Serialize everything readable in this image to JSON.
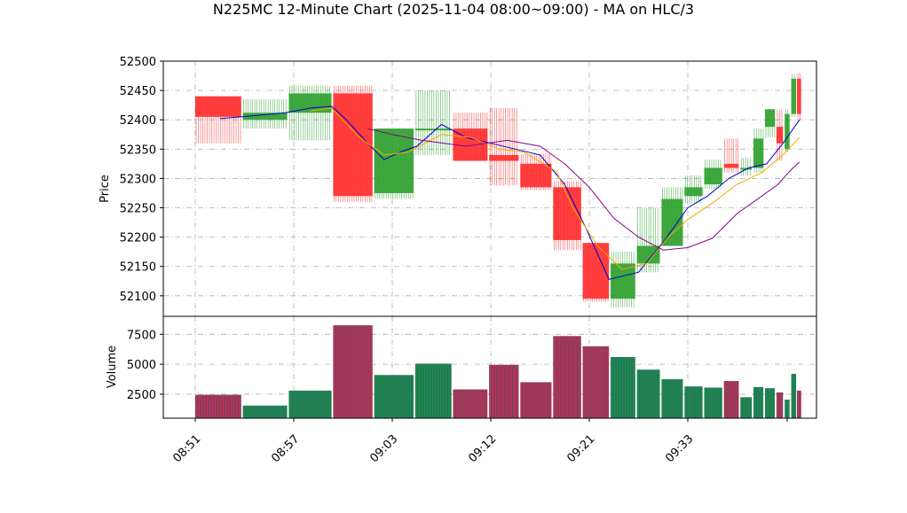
{
  "chart_data": {
    "type": "candlestick",
    "title": "N225MC 12-Minute Chart (2025-11-04 08:00~09:00) - MA on HLC/3",
    "price_panel": {
      "ylabel": "Price",
      "ylim": [
        52065,
        52500
      ],
      "yticks": [
        52100,
        52150,
        52200,
        52250,
        52300,
        52350,
        52400,
        52450,
        52500
      ],
      "grid": true
    },
    "volume_panel": {
      "ylabel": "Volume",
      "ylim": [
        500,
        9000
      ],
      "yticks": [
        2500,
        5000,
        7500
      ],
      "grid": true
    },
    "x": {
      "tick_labels": [
        "08:51",
        "08:57",
        "09:03",
        "09:12",
        "09:21",
        "09:33"
      ],
      "tick_index": [
        0,
        6,
        12,
        18,
        24,
        30
      ]
    },
    "colors": {
      "up": "#2ca02c",
      "down": "#ff2b2b",
      "ma1": "#0000cc",
      "ma2": "#ffa500",
      "ma3": "#8b008b",
      "grid": "#b0b0b0"
    },
    "candles": [
      {
        "start": 0,
        "end": 2.8,
        "open": 52440,
        "close": 52405,
        "high": 52440,
        "low": 52360,
        "volume": 2450
      },
      {
        "start": 2.9,
        "end": 5.6,
        "open": 52400,
        "close": 52412,
        "high": 52435,
        "low": 52385,
        "volume": 1550
      },
      {
        "start": 5.7,
        "end": 8.3,
        "open": 52412,
        "close": 52445,
        "high": 52458,
        "low": 52365,
        "volume": 2800
      },
      {
        "start": 8.4,
        "end": 10.8,
        "open": 52445,
        "close": 52270,
        "high": 52458,
        "low": 52260,
        "volume": 8250
      },
      {
        "start": 10.9,
        "end": 13.3,
        "open": 52275,
        "close": 52385,
        "high": 52385,
        "low": 52265,
        "volume": 4100
      },
      {
        "start": 13.4,
        "end": 15.6,
        "open": 52385,
        "close": 52385,
        "high": 52450,
        "low": 52340,
        "volume": 5050
      },
      {
        "start": 15.7,
        "end": 17.8,
        "open": 52385,
        "close": 52330,
        "high": 52412,
        "low": 52330,
        "volume": 2900
      },
      {
        "start": 17.9,
        "end": 19.7,
        "open": 52340,
        "close": 52330,
        "high": 52420,
        "low": 52288,
        "volume": 4950
      },
      {
        "start": 19.8,
        "end": 21.7,
        "open": 52325,
        "close": 52285,
        "high": 52342,
        "low": 52280,
        "volume": 3500
      },
      {
        "start": 21.8,
        "end": 23.5,
        "open": 52285,
        "close": 52195,
        "high": 52295,
        "low": 52178,
        "volume": 7350
      },
      {
        "start": 23.6,
        "end": 25.2,
        "open": 52190,
        "close": 52095,
        "high": 52190,
        "low": 52090,
        "volume": 6500
      },
      {
        "start": 25.3,
        "end": 26.8,
        "open": 52095,
        "close": 52155,
        "high": 52175,
        "low": 52080,
        "volume": 5600
      },
      {
        "start": 26.9,
        "end": 28.3,
        "open": 52155,
        "close": 52185,
        "high": 52250,
        "low": 52140,
        "volume": 4550
      },
      {
        "start": 28.4,
        "end": 29.7,
        "open": 52185,
        "close": 52265,
        "high": 52285,
        "low": 52185,
        "volume": 3750
      },
      {
        "start": 29.8,
        "end": 30.9,
        "open": 52270,
        "close": 52285,
        "high": 52305,
        "low": 52258,
        "volume": 3150
      },
      {
        "start": 31.0,
        "end": 32.1,
        "open": 52290,
        "close": 52318,
        "high": 52332,
        "low": 52282,
        "volume": 3050
      },
      {
        "start": 32.2,
        "end": 33.1,
        "open": 52325,
        "close": 52318,
        "high": 52368,
        "low": 52310,
        "volume": 3600
      },
      {
        "start": 33.2,
        "end": 33.9,
        "open": 52318,
        "close": 52318,
        "high": 52335,
        "low": 52305,
        "volume": 2250
      },
      {
        "start": 34.0,
        "end": 34.6,
        "open": 52318,
        "close": 52368,
        "high": 52385,
        "low": 52310,
        "volume": 3100
      },
      {
        "start": 34.7,
        "end": 35.3,
        "open": 52388,
        "close": 52418,
        "high": 52418,
        "low": 52370,
        "volume": 3000
      },
      {
        "start": 35.4,
        "end": 35.8,
        "open": 52388,
        "close": 52360,
        "high": 52418,
        "low": 52330,
        "volume": 2650
      },
      {
        "start": 35.9,
        "end": 36.2,
        "open": 52350,
        "close": 52410,
        "high": 52418,
        "low": 52345,
        "volume": 2050
      },
      {
        "start": 36.3,
        "end": 36.6,
        "open": 52410,
        "close": 52470,
        "high": 52478,
        "low": 52405,
        "volume": 4200
      },
      {
        "start": 36.65,
        "end": 36.9,
        "open": 52470,
        "close": 52410,
        "high": 52480,
        "low": 52400,
        "volume": 2800
      }
    ],
    "moving_averages": [
      {
        "color": "#0000cc",
        "points": [
          [
            1.5,
            52402
          ],
          [
            4,
            52408
          ],
          [
            5.5,
            52412
          ],
          [
            7,
            52420
          ],
          [
            8.3,
            52423
          ],
          [
            9.2,
            52400
          ],
          [
            10.5,
            52360
          ],
          [
            11.5,
            52332
          ],
          [
            12.5,
            52345
          ],
          [
            13.5,
            52355
          ],
          [
            15,
            52392
          ],
          [
            16.5,
            52370
          ],
          [
            18,
            52360
          ],
          [
            19.5,
            52350
          ],
          [
            21,
            52340
          ],
          [
            22.5,
            52290
          ],
          [
            23.8,
            52215
          ],
          [
            25.2,
            52128
          ],
          [
            27,
            52140
          ],
          [
            28.6,
            52195
          ],
          [
            30,
            52250
          ],
          [
            31.2,
            52270
          ],
          [
            32.5,
            52300
          ],
          [
            33.7,
            52318
          ],
          [
            34.8,
            52325
          ],
          [
            35.8,
            52360
          ],
          [
            36.8,
            52400
          ]
        ]
      },
      {
        "color": "#ffa500",
        "points": [
          [
            7,
            52415
          ],
          [
            8.3,
            52420
          ],
          [
            10,
            52370
          ],
          [
            11.5,
            52340
          ],
          [
            13,
            52345
          ],
          [
            15,
            52375
          ],
          [
            16.8,
            52370
          ],
          [
            18.5,
            52350
          ],
          [
            20,
            52345
          ],
          [
            22,
            52312
          ],
          [
            23,
            52250
          ],
          [
            24.5,
            52185
          ],
          [
            26,
            52145
          ],
          [
            27.5,
            52155
          ],
          [
            28.8,
            52200
          ],
          [
            30,
            52230
          ],
          [
            31.5,
            52258
          ],
          [
            33,
            52290
          ],
          [
            34.5,
            52310
          ],
          [
            35.8,
            52340
          ],
          [
            36.8,
            52370
          ]
        ]
      },
      {
        "color": "#8b008b",
        "points": [
          [
            10.5,
            52385
          ],
          [
            12,
            52375
          ],
          [
            13.8,
            52365
          ],
          [
            16.5,
            52355
          ],
          [
            19,
            52365
          ],
          [
            21,
            52355
          ],
          [
            22.5,
            52325
          ],
          [
            24,
            52285
          ],
          [
            25.5,
            52232
          ],
          [
            27,
            52200
          ],
          [
            28.5,
            52178
          ],
          [
            30,
            52182
          ],
          [
            31.5,
            52198
          ],
          [
            33,
            52240
          ],
          [
            34.5,
            52270
          ],
          [
            35.5,
            52290
          ],
          [
            36.3,
            52315
          ],
          [
            36.8,
            52328
          ]
        ]
      }
    ]
  }
}
